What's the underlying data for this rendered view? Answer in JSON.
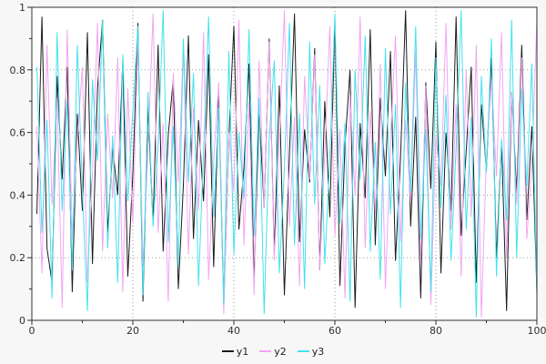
{
  "figure": {
    "background": "#f7f7f7",
    "plot_background": "#ffffff",
    "border_color": "#303030",
    "grid_color": "#9a9a9a",
    "tick_label_color": "#303030"
  },
  "chart_data": {
    "type": "line",
    "title": "",
    "xlabel": "",
    "ylabel": "",
    "xlim": [
      0,
      100
    ],
    "ylim": [
      0,
      1
    ],
    "x_ticks": [
      0,
      20,
      40,
      60,
      80,
      100
    ],
    "y_ticks": [
      0,
      0.2,
      0.4,
      0.6,
      0.8,
      1
    ],
    "x_minor_step": 10,
    "y_minor_step": 0.1,
    "grid": true,
    "grid_style": "dotted",
    "legend_position": "bottom-center",
    "x_start": 1,
    "series": [
      {
        "name": "y1",
        "color": "#1c1c1c",
        "values": [
          0.34,
          0.97,
          0.23,
          0.12,
          0.78,
          0.45,
          0.81,
          0.09,
          0.66,
          0.35,
          0.92,
          0.18,
          0.74,
          0.96,
          0.28,
          0.55,
          0.4,
          0.83,
          0.14,
          0.47,
          0.95,
          0.06,
          0.68,
          0.31,
          0.88,
          0.22,
          0.59,
          0.77,
          0.1,
          0.43,
          0.91,
          0.26,
          0.64,
          0.38,
          0.85,
          0.17,
          0.72,
          0.05,
          0.58,
          0.94,
          0.29,
          0.49,
          0.82,
          0.13,
          0.67,
          0.36,
          0.9,
          0.21,
          0.75,
          0.08,
          0.53,
          0.98,
          0.25,
          0.61,
          0.44,
          0.87,
          0.16,
          0.7,
          0.33,
          0.96,
          0.11,
          0.56,
          0.8,
          0.04,
          0.63,
          0.39,
          0.93,
          0.24,
          0.71,
          0.46,
          0.86,
          0.19,
          0.52,
          0.99,
          0.3,
          0.65,
          0.07,
          0.76,
          0.42,
          0.89,
          0.15,
          0.6,
          0.35,
          0.97,
          0.27,
          0.54,
          0.81,
          0.12,
          0.69,
          0.48,
          0.84,
          0.2,
          0.57,
          0.03,
          0.73,
          0.41,
          0.88,
          0.32,
          0.62,
          0.09
        ]
      },
      {
        "name": "y2",
        "color": "#f2a6f2",
        "values": [
          0.62,
          0.15,
          0.88,
          0.37,
          0.71,
          0.04,
          0.93,
          0.26,
          0.58,
          0.81,
          0.12,
          0.47,
          0.95,
          0.22,
          0.66,
          0.39,
          0.84,
          0.09,
          0.74,
          0.31,
          0.9,
          0.17,
          0.55,
          0.98,
          0.28,
          0.63,
          0.06,
          0.79,
          0.44,
          0.87,
          0.21,
          0.68,
          0.35,
          0.92,
          0.13,
          0.51,
          0.76,
          0.02,
          0.6,
          0.41,
          0.96,
          0.24,
          0.7,
          0.08,
          0.83,
          0.36,
          0.89,
          0.19,
          0.57,
          0.99,
          0.3,
          0.65,
          0.11,
          0.78,
          0.45,
          0.85,
          0.16,
          0.53,
          0.94,
          0.27,
          0.61,
          0.07,
          0.72,
          0.4,
          0.97,
          0.23,
          0.67,
          0.34,
          0.82,
          0.1,
          0.56,
          0.91,
          0.25,
          0.64,
          0.38,
          0.86,
          0.18,
          0.75,
          0.05,
          0.59,
          0.43,
          0.95,
          0.29,
          0.69,
          0.14,
          0.8,
          0.33,
          0.88,
          0.01,
          0.52,
          0.77,
          0.46,
          0.92,
          0.2,
          0.73,
          0.37,
          0.84,
          0.26,
          0.5,
          0.96
        ]
      },
      {
        "name": "y3",
        "color": "#43e2ee",
        "values": [
          0.81,
          0.28,
          0.64,
          0.07,
          0.92,
          0.35,
          0.7,
          0.16,
          0.88,
          0.42,
          0.03,
          0.77,
          0.51,
          0.96,
          0.23,
          0.59,
          0.12,
          0.85,
          0.38,
          0.67,
          0.94,
          0.08,
          0.73,
          0.3,
          0.56,
          0.99,
          0.25,
          0.62,
          0.17,
          0.9,
          0.44,
          0.79,
          0.11,
          0.54,
          0.97,
          0.33,
          0.68,
          0.05,
          0.86,
          0.21,
          0.6,
          0.39,
          0.93,
          0.27,
          0.71,
          0.02,
          0.58,
          0.83,
          0.15,
          0.48,
          0.95,
          0.24,
          0.66,
          0.1,
          0.89,
          0.37,
          0.75,
          0.18,
          0.52,
          0.98,
          0.31,
          0.63,
          0.06,
          0.8,
          0.45,
          0.91,
          0.22,
          0.57,
          0.13,
          0.87,
          0.34,
          0.69,
          0.04,
          0.76,
          0.41,
          0.94,
          0.26,
          0.61,
          0.09,
          0.84,
          0.36,
          0.72,
          0.19,
          0.55,
          0.99,
          0.29,
          0.65,
          0.01,
          0.78,
          0.47,
          0.9,
          0.14,
          0.58,
          0.32,
          0.96,
          0.2,
          0.74,
          0.43,
          0.82,
          0.08
        ]
      }
    ]
  }
}
